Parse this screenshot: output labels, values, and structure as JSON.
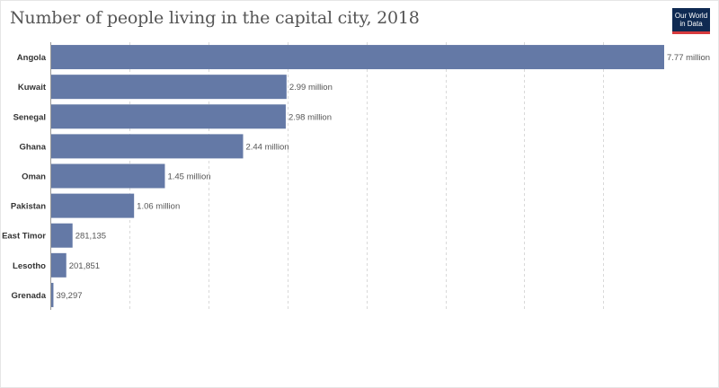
{
  "header": {
    "title": "Number of people living in the capital city, 2018",
    "logo_line1": "Our World",
    "logo_line2": "in Data"
  },
  "colors": {
    "bar": "#6479a6",
    "logo_bg": "#0f2a52",
    "logo_accent": "#d73b3e"
  },
  "chart_data": {
    "type": "bar",
    "orientation": "horizontal",
    "title": "Number of people living in the capital city, 2018",
    "categories": [
      "Angola",
      "Kuwait",
      "Senegal",
      "Ghana",
      "Oman",
      "Pakistan",
      "East Timor",
      "Lesotho",
      "Grenada"
    ],
    "values": [
      7770000,
      2990000,
      2980000,
      2440000,
      1450000,
      1060000,
      281135,
      201851,
      39297
    ],
    "value_labels": [
      "7.77 million",
      "2.99 million",
      "2.98 million",
      "2.44 million",
      "1.45 million",
      "1.06 million",
      "281,135",
      "201,851",
      "39,297"
    ],
    "xlim": [
      0,
      7770000
    ],
    "grid": true,
    "grid_step": 1000000,
    "legend": "none"
  }
}
